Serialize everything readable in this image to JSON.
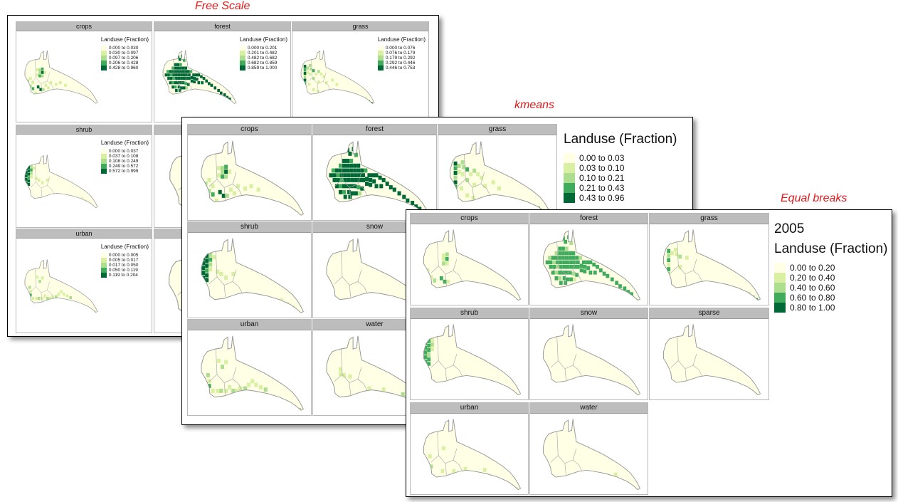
{
  "captions": {
    "free_scale": "Free Scale",
    "kmeans": "kmeans",
    "equal_breaks": "Equal breaks"
  },
  "colors": {
    "caption": "#e31a1c",
    "classes": [
      "#ffffe5",
      "#d9f0a3",
      "#addd8e",
      "#41ab5d",
      "#006837"
    ],
    "outline": "#9a9a9a",
    "strip": "#bdbdbd"
  },
  "free_scale": {
    "panels": [
      {
        "name": "crops",
        "legend": {
          "title": "Landuse (Fraction)",
          "items": [
            "0.000 to 0.030",
            "0.030 to 0.097",
            "0.097 to 0.206",
            "0.206 to 0.428",
            "0.428 to 0.960"
          ]
        }
      },
      {
        "name": "forest",
        "legend": {
          "title": "Landuse (Fraction)",
          "items": [
            "0.000 to 0.201",
            "0.201 to 0.482",
            "0.482 to 0.682",
            "0.682 to 0.859",
            "0.859 to 1.000"
          ]
        }
      },
      {
        "name": "grass",
        "legend": {
          "title": "Landuse (Fraction)",
          "items": [
            "0.000 to 0.076",
            "0.076 to 0.179",
            "0.179 to 0.292",
            "0.292 to 0.446",
            "0.446 to 0.753"
          ]
        }
      },
      {
        "name": "shrub",
        "legend": {
          "title": "Landuse (Fraction)",
          "items": [
            "0.000 to 0.037",
            "0.037 to 0.108",
            "0.108 to 0.249",
            "0.249 to 0.572",
            "0.572 to 0.999"
          ]
        }
      },
      {
        "name": "",
        "legend": null
      },
      {
        "name": "",
        "legend": null
      },
      {
        "name": "urban",
        "legend": {
          "title": "Landuse (Fraction)",
          "items": [
            "0.000 to 0.005",
            "0.005 to 0.017",
            "0.017 to 0.050",
            "0.050 to 0.119",
            "0.119 to 0.204"
          ]
        }
      },
      {
        "name": "",
        "legend": null
      }
    ]
  },
  "kmeans": {
    "legend": {
      "title": "Landuse (Fraction)",
      "items": [
        "0.00 to 0.03",
        "0.03 to 0.10",
        "0.10 to 0.21",
        "0.21 to 0.43",
        "0.43 to 0.96"
      ]
    },
    "panels": [
      {
        "name": "crops"
      },
      {
        "name": "forest"
      },
      {
        "name": "grass"
      },
      {
        "name": "shrub"
      },
      {
        "name": "snow"
      },
      {
        "name": "urban"
      },
      {
        "name": "water"
      }
    ]
  },
  "equal_breaks": {
    "legend": {
      "year": "2005",
      "title": "Landuse (Fraction)",
      "items": [
        "0.00 to 0.20",
        "0.20 to 0.40",
        "0.40 to 0.60",
        "0.60 to 0.80",
        "0.80 to 1.00"
      ]
    },
    "panels": [
      {
        "name": "crops"
      },
      {
        "name": "forest"
      },
      {
        "name": "grass"
      },
      {
        "name": "shrub"
      },
      {
        "name": "snow"
      },
      {
        "name": "sparse"
      },
      {
        "name": "urban"
      },
      {
        "name": "water"
      }
    ]
  }
}
